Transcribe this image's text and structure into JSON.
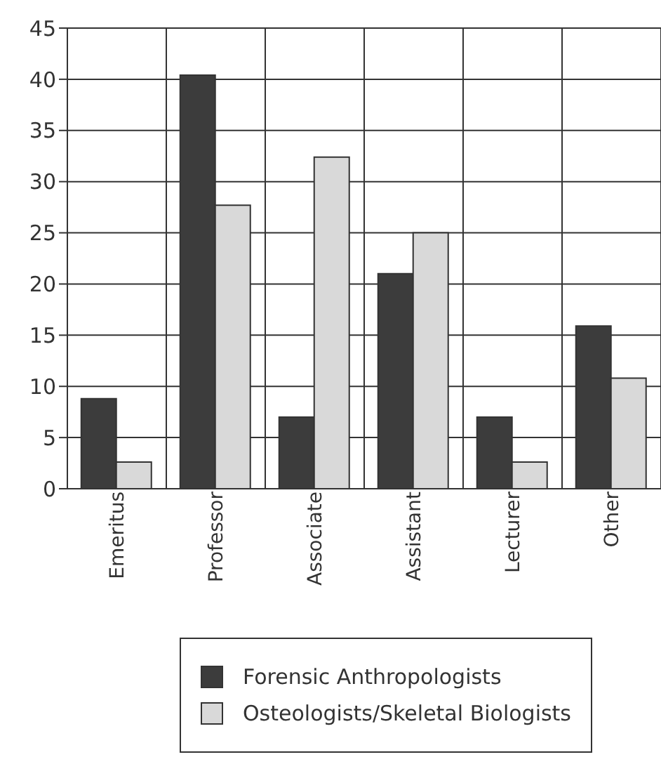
{
  "chart_data": {
    "type": "bar",
    "categories": [
      "Emeritus",
      "Professor",
      "Associate",
      "Assistant",
      "Lecturer",
      "Other"
    ],
    "series": [
      {
        "name": "Forensic Anthropologists",
        "color": "#3c3c3c",
        "values": [
          8.8,
          40.4,
          7.0,
          21.0,
          7.0,
          15.9
        ]
      },
      {
        "name": "Osteologists/Skeletal Biologists",
        "color": "#d9d9d9",
        "values": [
          2.6,
          27.7,
          32.4,
          25.0,
          2.6,
          10.8
        ]
      }
    ],
    "ylim": [
      0,
      45
    ],
    "yticks": [
      0,
      5,
      10,
      15,
      20,
      25,
      30,
      35,
      40,
      45
    ],
    "grid": true,
    "legend": "bottom"
  }
}
